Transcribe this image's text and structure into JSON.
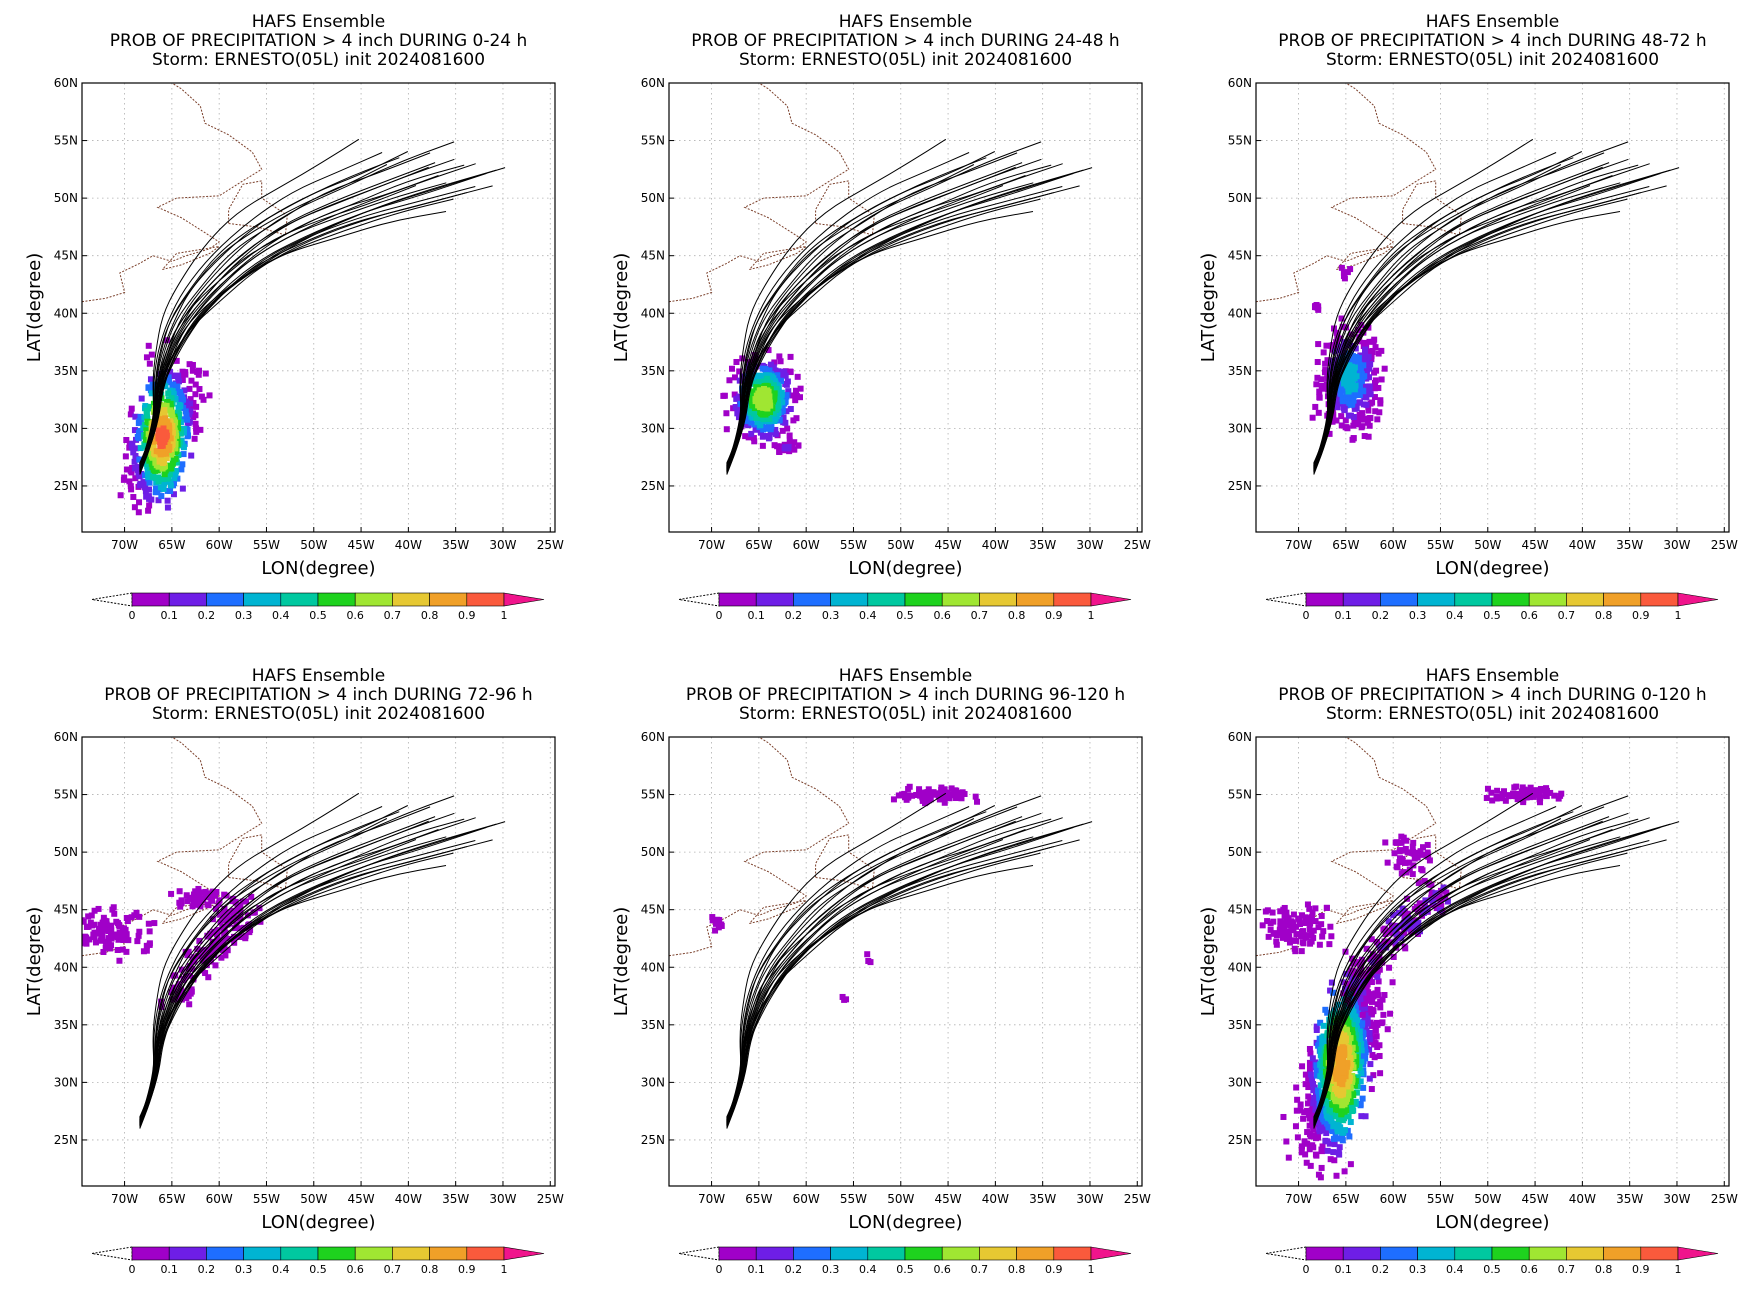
{
  "figure": {
    "panels": [
      {
        "id": "p1",
        "title_line1": "HAFS Ensemble",
        "title_line2": "PROB OF PRECIPITATION > 4 inch DURING  0-24 h",
        "title_line3": "Storm: ERNESTO(05L) init 2024081600"
      },
      {
        "id": "p2",
        "title_line1": "HAFS Ensemble",
        "title_line2": "PROB OF PRECIPITATION > 4 inch DURING 24-48 h",
        "title_line3": "Storm: ERNESTO(05L) init 2024081600"
      },
      {
        "id": "p3",
        "title_line1": "HAFS Ensemble",
        "title_line2": "PROB OF PRECIPITATION > 4 inch DURING 48-72 h",
        "title_line3": "Storm: ERNESTO(05L) init 2024081600"
      },
      {
        "id": "p4",
        "title_line1": "HAFS Ensemble",
        "title_line2": "PROB OF PRECIPITATION > 4 inch DURING 72-96 h",
        "title_line3": "Storm: ERNESTO(05L) init 2024081600"
      },
      {
        "id": "p5",
        "title_line1": "HAFS Ensemble",
        "title_line2": "PROB OF PRECIPITATION > 4 inch DURING 96-120 h",
        "title_line3": "Storm: ERNESTO(05L) init 2024081600"
      },
      {
        "id": "p6",
        "title_line1": "HAFS Ensemble",
        "title_line2": "PROB OF PRECIPITATION > 4 inch DURING 0-120 h",
        "title_line3": "Storm: ERNESTO(05L) init 2024081600"
      }
    ],
    "axes": {
      "xlabel": "LON(degree)",
      "ylabel": "LAT(degree)",
      "lon_range": [
        -74.5,
        -24.5
      ],
      "lat_range": [
        21,
        60
      ],
      "lon_ticks": [
        {
          "v": -70,
          "label": "70W"
        },
        {
          "v": -65,
          "label": "65W"
        },
        {
          "v": -60,
          "label": "60W"
        },
        {
          "v": -55,
          "label": "55W"
        },
        {
          "v": -50,
          "label": "50W"
        },
        {
          "v": -45,
          "label": "45W"
        },
        {
          "v": -40,
          "label": "40W"
        },
        {
          "v": -35,
          "label": "35W"
        },
        {
          "v": -30,
          "label": "30W"
        },
        {
          "v": -25,
          "label": "25W"
        }
      ],
      "lat_ticks": [
        {
          "v": 25,
          "label": "25N"
        },
        {
          "v": 30,
          "label": "30N"
        },
        {
          "v": 35,
          "label": "35N"
        },
        {
          "v": 40,
          "label": "40N"
        },
        {
          "v": 45,
          "label": "45N"
        },
        {
          "v": 50,
          "label": "50N"
        },
        {
          "v": 55,
          "label": "55N"
        },
        {
          "v": 60,
          "label": "60N"
        }
      ],
      "grid": "dotted"
    },
    "colorbar": {
      "labels": [
        "0",
        "0.1",
        "0.2",
        "0.3",
        "0.4",
        "0.5",
        "0.6",
        "0.7",
        "0.8",
        "0.9",
        "1"
      ],
      "colors": [
        "#a000c8",
        "#6e1ee6",
        "#1e6eff",
        "#00b4d2",
        "#00c8a0",
        "#1ed21e",
        "#a0e632",
        "#e6c832",
        "#f0a028",
        "#fa5a3c",
        "#f0148c"
      ]
    },
    "colors": {
      "track": "#000000",
      "coast": "#7a3f2a",
      "grid": "#b0b0b0"
    }
  }
}
